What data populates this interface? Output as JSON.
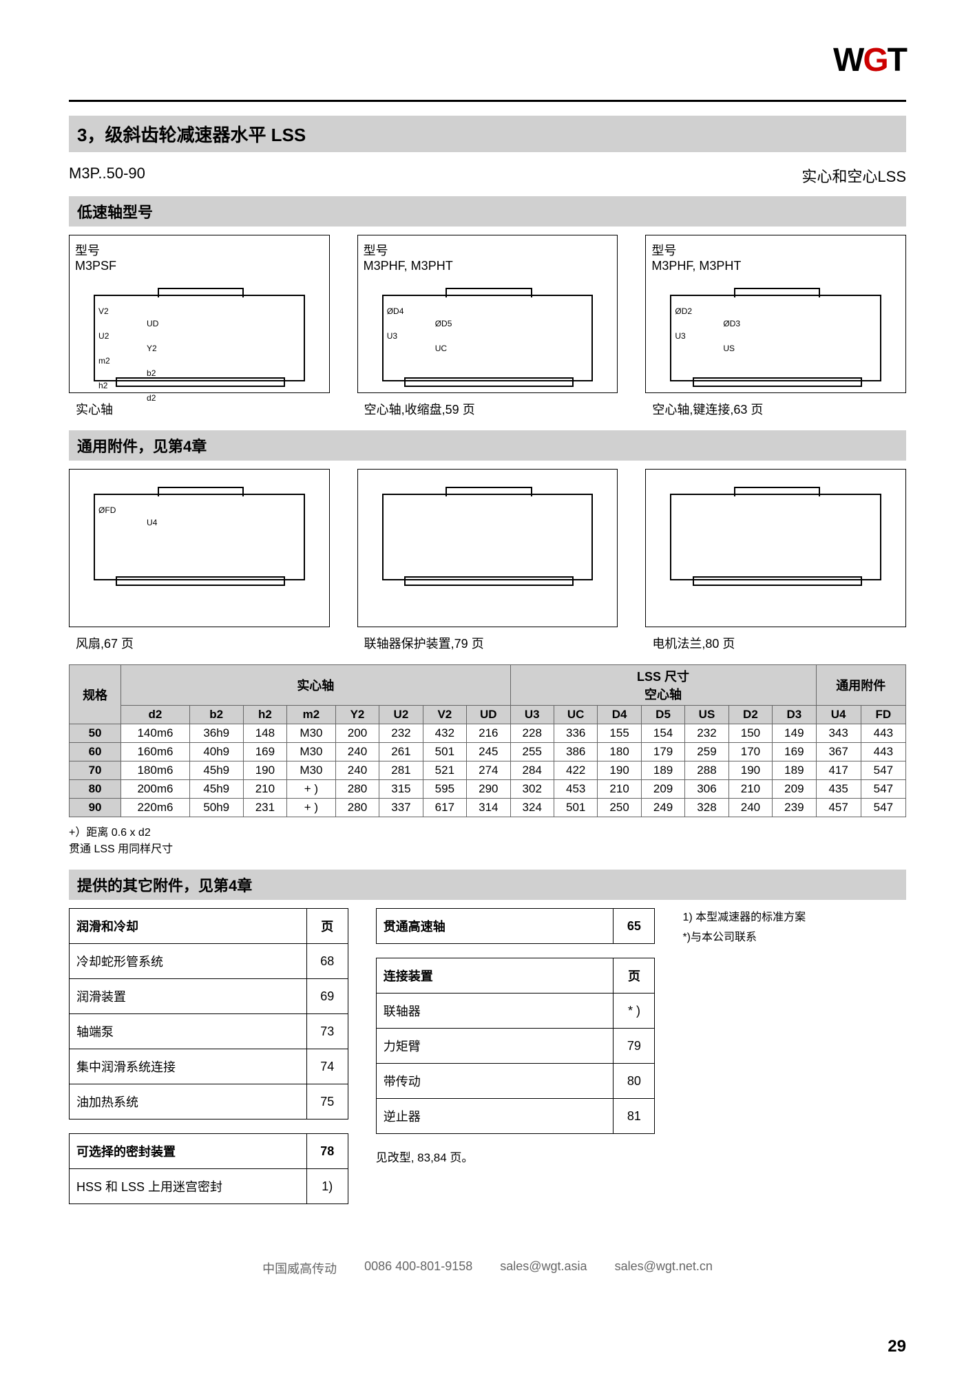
{
  "logo": {
    "text1": "W",
    "text2": "G",
    "text3": "T"
  },
  "title": "3，级斜齿轮减速器水平 LSS",
  "model": "M3P..50-90",
  "lss_type": "实心和空心LSS",
  "heading_lowspeed": "低速轴型号",
  "heading_accessories": "通用附件，见第4章",
  "heading_other": "提供的其它附件，见第4章",
  "diagrams_row1": [
    {
      "label1": "型号",
      "label2": "M3PSF",
      "caption": "实心轴",
      "dims": [
        "V2",
        "UD",
        "U2",
        "Y2",
        "m2",
        "b2",
        "h2",
        "d2"
      ]
    },
    {
      "label1": "型号",
      "label2": "M3PHF, M3PHT",
      "caption": "空心轴,收缩盘,59 页",
      "dims": [
        "ØD4",
        "ØD5",
        "U3",
        "UC"
      ]
    },
    {
      "label1": "型号",
      "label2": "M3PHF, M3PHT",
      "caption": "空心轴,键连接,63 页",
      "dims": [
        "ØD2",
        "ØD3",
        "U3",
        "US"
      ]
    }
  ],
  "diagrams_row2": [
    {
      "caption": "风扇,67 页",
      "dims": [
        "ØFD",
        "U4"
      ]
    },
    {
      "caption": "联轴器保护装置,79 页",
      "dims": []
    },
    {
      "caption": "电机法兰,80 页",
      "dims": []
    }
  ],
  "table": {
    "group_headers": [
      "规格",
      "实心轴",
      "LSS 尺寸\n空心轴",
      "通用附件"
    ],
    "col_headers": [
      "",
      "d2",
      "b2",
      "h2",
      "m2",
      "Y2",
      "U2",
      "V2",
      "UD",
      "U3",
      "UC",
      "D4",
      "D5",
      "US",
      "D2",
      "D3",
      "U4",
      "FD"
    ],
    "rows": [
      [
        "50",
        "140m6",
        "36h9",
        "148",
        "M30",
        "200",
        "232",
        "432",
        "216",
        "228",
        "336",
        "155",
        "154",
        "232",
        "150",
        "149",
        "343",
        "443"
      ],
      [
        "60",
        "160m6",
        "40h9",
        "169",
        "M30",
        "240",
        "261",
        "501",
        "245",
        "255",
        "386",
        "180",
        "179",
        "259",
        "170",
        "169",
        "367",
        "443"
      ],
      [
        "70",
        "180m6",
        "45h9",
        "190",
        "M30",
        "240",
        "281",
        "521",
        "274",
        "284",
        "422",
        "190",
        "189",
        "288",
        "190",
        "189",
        "417",
        "547"
      ],
      [
        "80",
        "200m6",
        "45h9",
        "210",
        "+ )",
        "280",
        "315",
        "595",
        "290",
        "302",
        "453",
        "210",
        "209",
        "306",
        "210",
        "209",
        "435",
        "547"
      ],
      [
        "90",
        "220m6",
        "50h9",
        "231",
        "+ )",
        "280",
        "337",
        "617",
        "314",
        "324",
        "501",
        "250",
        "249",
        "328",
        "240",
        "239",
        "457",
        "547"
      ]
    ],
    "note1": "+）距离 0.6 x d2",
    "note2": "贯通 LSS 用同样尺寸"
  },
  "info_tables": {
    "col1a": {
      "header": [
        "润滑和冷却",
        "页"
      ],
      "rows": [
        [
          "冷却蛇形管系统",
          "68"
        ],
        [
          "润滑装置",
          "69"
        ],
        [
          "轴端泵",
          "73"
        ],
        [
          "集中润滑系统连接",
          "74"
        ],
        [
          "油加热系统",
          "75"
        ]
      ]
    },
    "col1b": {
      "header": [
        "可选择的密封装置",
        "78"
      ],
      "rows": [
        [
          "HSS 和 LSS 上用迷宫密封",
          "1)"
        ]
      ]
    },
    "col2a": {
      "header": [
        "贯通高速轴",
        "65"
      ]
    },
    "col2b": {
      "header": [
        "连接装置",
        "页"
      ],
      "rows": [
        [
          "联轴器",
          "* )"
        ],
        [
          "力矩臂",
          "79"
        ],
        [
          "带传动",
          "80"
        ],
        [
          "逆止器",
          "81"
        ]
      ]
    },
    "col2_note": "见改型, 83,84 页。"
  },
  "side_notes": [
    "1) 本型减速器的标准方案",
    "*)与本公司联系"
  ],
  "footer": {
    "company": "中国威高传动",
    "phone": "0086  400-801-9158",
    "email1": "sales@wgt.asia",
    "email2": "sales@wgt.net.cn"
  },
  "page_number": "29"
}
